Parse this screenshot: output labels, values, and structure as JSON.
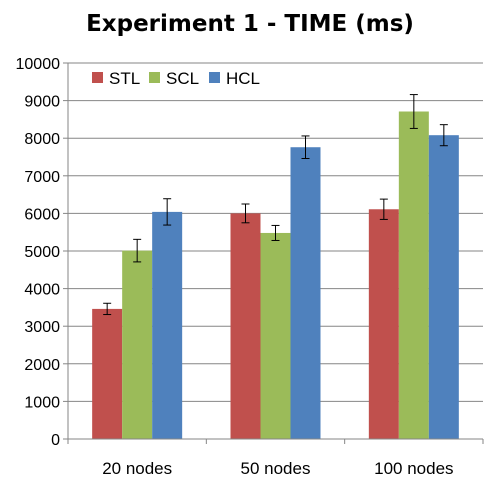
{
  "chart_data": {
    "type": "bar",
    "title": "Experiment 1 - TIME (ms)",
    "xlabel": "",
    "ylabel": "",
    "ylim": [
      0,
      10000
    ],
    "yticks": [
      0,
      1000,
      2000,
      3000,
      4000,
      5000,
      6000,
      7000,
      8000,
      9000,
      10000
    ],
    "grid": true,
    "legend_position": "top-left",
    "categories": [
      "20 nodes",
      "50 nodes",
      "100 nodes"
    ],
    "series": [
      {
        "name": "STL",
        "color": "#c0504d",
        "values": [
          3460,
          6000,
          6110
        ],
        "error": [
          150,
          250,
          270
        ]
      },
      {
        "name": "SCL",
        "color": "#9bbb59",
        "values": [
          5010,
          5480,
          8710
        ],
        "error": [
          300,
          200,
          450
        ]
      },
      {
        "name": "HCL",
        "color": "#4f81bd",
        "values": [
          6040,
          7760,
          8080
        ],
        "error": [
          350,
          300,
          280
        ]
      }
    ]
  }
}
